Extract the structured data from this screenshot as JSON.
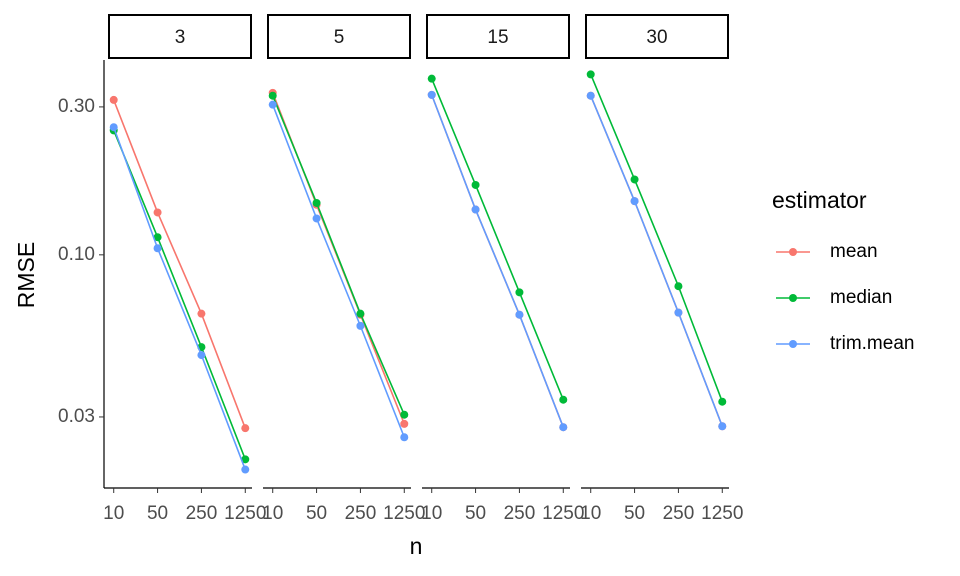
{
  "chart_data": {
    "type": "line",
    "x_label": "n",
    "y_label": "RMSE",
    "legend_title": "estimator",
    "x": [
      10,
      50,
      250,
      1250
    ],
    "xlim": [
      7,
      1600
    ],
    "xticks": [
      10,
      50,
      250,
      1250
    ],
    "xlog": true,
    "ylim": [
      0.0177,
      0.425
    ],
    "yticks": [
      {
        "value": 0.3,
        "label": "0.30"
      },
      {
        "value": 0.1,
        "label": "0.10"
      },
      0.03
    ],
    "ylog": true,
    "legend_position": "right",
    "facets": [
      {
        "label": "3",
        "series": [
          {
            "name": "mean",
            "color": "#f8766d",
            "values": [
              0.316,
              0.137,
              0.0646,
              0.0276
            ]
          },
          {
            "name": "median",
            "color": "#00ba38",
            "values": [
              0.252,
              0.114,
              0.0504,
              0.0219
            ]
          },
          {
            "name": "trim.mean",
            "color": "#619cff",
            "values": [
              0.258,
              0.105,
              0.0475,
              0.0203
            ]
          }
        ]
      },
      {
        "label": "5",
        "series": [
          {
            "name": "mean",
            "color": "#f8766d",
            "values": [
              0.333,
              0.145,
              0.0641,
              0.0285
            ]
          },
          {
            "name": "median",
            "color": "#00ba38",
            "values": [
              0.326,
              0.147,
              0.0646,
              0.0305
            ]
          },
          {
            "name": "trim.mean",
            "color": "#619cff",
            "values": [
              0.305,
              0.131,
              0.059,
              0.0258
            ]
          }
        ]
      },
      {
        "label": "15",
        "series": [
          {
            "name": "mean",
            "color": "#f8766d",
            "values": [
              0.328,
              0.14,
              0.0641,
              0.0278
            ]
          },
          {
            "name": "median",
            "color": "#00ba38",
            "values": [
              0.37,
              0.168,
              0.0757,
              0.0341
            ]
          },
          {
            "name": "trim.mean",
            "color": "#619cff",
            "values": [
              0.328,
              0.14,
              0.0641,
              0.0278
            ]
          }
        ]
      },
      {
        "label": "30",
        "series": [
          {
            "name": "mean",
            "color": "#f8766d",
            "values": [
              0.326,
              0.149,
              0.0651,
              0.028
            ]
          },
          {
            "name": "median",
            "color": "#00ba38",
            "values": [
              0.382,
              0.175,
              0.0792,
              0.0336
            ]
          },
          {
            "name": "trim.mean",
            "color": "#619cff",
            "values": [
              0.326,
              0.149,
              0.0651,
              0.028
            ]
          }
        ]
      }
    ]
  }
}
